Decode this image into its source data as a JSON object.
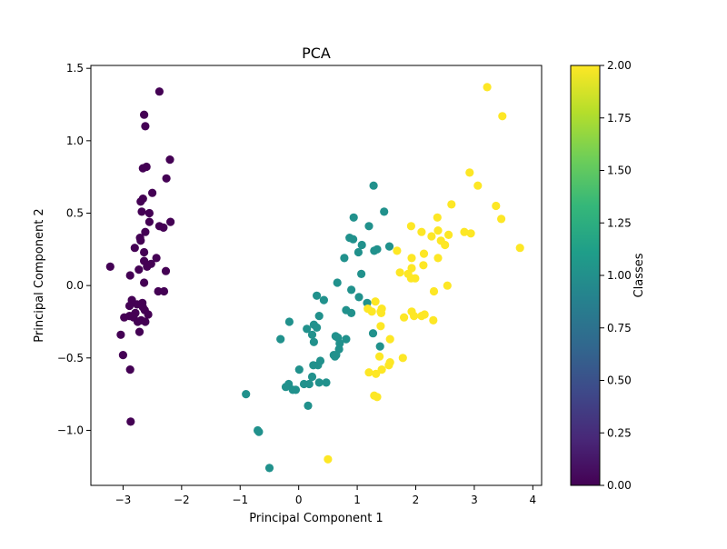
{
  "chart_data": {
    "type": "scatter",
    "title": "PCA",
    "xlabel": "Principal Component 1",
    "ylabel": "Principal Component 2",
    "xlim": [
      -3.55,
      4.15
    ],
    "ylim": [
      -1.38,
      1.52
    ],
    "xticks": [
      -3,
      -2,
      -1,
      0,
      1,
      2,
      3,
      4
    ],
    "xtick_labels": [
      "−3",
      "−2",
      "−1",
      "0",
      "1",
      "2",
      "3",
      "4"
    ],
    "yticks": [
      -1.0,
      -0.5,
      0.0,
      0.5,
      1.0,
      1.5
    ],
    "ytick_labels": [
      "−1.0",
      "−0.5",
      "0.0",
      "0.5",
      "1.0",
      "1.5"
    ],
    "grid": false,
    "legend": "none",
    "colorbar": {
      "label": "Classes",
      "min": 0.0,
      "max": 2.0,
      "ticks": [
        0.0,
        0.25,
        0.5,
        0.75,
        1.0,
        1.25,
        1.5,
        1.75,
        2.0
      ],
      "tick_labels": [
        "0.00",
        "0.25",
        "0.50",
        "0.75",
        "1.00",
        "1.25",
        "1.50",
        "1.75",
        "2.00"
      ],
      "colormap": [
        "#440154",
        "#482878",
        "#3e4989",
        "#31688e",
        "#26828e",
        "#1f9e89",
        "#35b779",
        "#6ece58",
        "#b5de2b",
        "#fde725"
      ]
    },
    "class_colors": [
      "#440154",
      "#21918c",
      "#fde725"
    ],
    "series": [
      {
        "class": 0,
        "x": [
          -2.38,
          -2.64,
          -2.62,
          -2.6,
          -2.66,
          -2.66,
          -2.26,
          -2.7,
          -2.2,
          -2.5,
          -2.68,
          -2.55,
          -2.38,
          -2.62,
          -2.31,
          -2.55,
          -2.43,
          -2.27,
          -2.64,
          -2.59,
          -2.7,
          -2.19,
          -2.64,
          -3.22,
          -2.88,
          -2.71,
          -2.4,
          -2.64,
          -2.52,
          -2.3,
          -2.85,
          -2.67,
          -2.76,
          -2.63,
          -2.79,
          -2.89,
          -2.82,
          -2.98,
          -2.62,
          -2.69,
          -2.57,
          -2.66,
          -2.72,
          -2.75,
          -2.8,
          -2.88,
          -3.0,
          -3.04,
          -2.87,
          -2.89,
          -2.84,
          -2.73
        ],
        "y": [
          1.34,
          1.18,
          1.1,
          0.82,
          0.81,
          0.6,
          0.74,
          0.58,
          0.87,
          0.64,
          0.51,
          0.5,
          0.41,
          0.37,
          0.4,
          0.44,
          0.19,
          0.1,
          0.17,
          0.13,
          0.31,
          0.44,
          0.23,
          0.13,
          0.07,
          0.33,
          -0.04,
          0.02,
          0.15,
          -0.04,
          -0.1,
          -0.12,
          -0.13,
          -0.17,
          -0.19,
          -0.14,
          -0.22,
          -0.22,
          -0.25,
          -0.24,
          -0.2,
          -0.15,
          -0.32,
          -0.25,
          0.26,
          -0.58,
          -0.48,
          -0.34,
          -0.94,
          -0.21,
          -0.21,
          0.11
        ]
      },
      {
        "class": 1,
        "x": [
          1.28,
          1.46,
          0.94,
          0.87,
          1.2,
          1.08,
          0.93,
          0.78,
          1.02,
          1.07,
          0.66,
          0.31,
          0.43,
          1.03,
          1.17,
          0.9,
          0.81,
          0.9,
          0.63,
          1.27,
          0.7,
          1.55,
          1.34,
          1.29,
          0.6,
          0.37,
          0.23,
          0.26,
          0.31,
          0.14,
          -0.16,
          0.35,
          0.26,
          0.33,
          0.67,
          0.69,
          0.81,
          0.62,
          0.35,
          0.09,
          -0.31,
          0.18,
          0.25,
          0.64,
          0.23,
          -0.17,
          0.01,
          -0.05,
          0.16,
          0.47,
          -0.22,
          -0.1,
          -0.9,
          -0.7,
          -0.68,
          -0.5,
          1.39
        ],
        "y": [
          0.69,
          0.51,
          0.47,
          0.33,
          0.41,
          0.28,
          0.32,
          0.19,
          0.23,
          0.08,
          0.02,
          -0.07,
          -0.1,
          -0.08,
          -0.12,
          -0.03,
          -0.17,
          -0.19,
          -0.35,
          -0.33,
          -0.4,
          0.27,
          0.25,
          0.24,
          -0.48,
          -0.52,
          -0.34,
          -0.27,
          -0.29,
          -0.3,
          -0.25,
          -0.21,
          -0.39,
          -0.55,
          -0.36,
          -0.44,
          -0.37,
          -0.49,
          -0.67,
          -0.68,
          -0.37,
          -0.68,
          -0.55,
          -0.48,
          -0.63,
          -0.68,
          -0.58,
          -0.72,
          -0.83,
          -0.67,
          -0.7,
          -0.72,
          -0.75,
          -1.0,
          -1.01,
          -1.26,
          -0.42
        ]
      },
      {
        "class": 2,
        "x": [
          3.22,
          3.48,
          2.92,
          3.06,
          2.61,
          3.37,
          3.46,
          3.78,
          2.83,
          2.94,
          2.37,
          2.1,
          1.92,
          2.38,
          2.27,
          2.5,
          2.56,
          2.43,
          1.68,
          1.93,
          2.14,
          2.38,
          2.13,
          1.93,
          1.87,
          1.99,
          1.73,
          1.92,
          2.54,
          2.31,
          1.42,
          1.31,
          1.41,
          1.18,
          1.25,
          1.4,
          1.93,
          1.97,
          2.15,
          2.1,
          1.8,
          1.56,
          1.42,
          1.54,
          1.2,
          1.38,
          1.56,
          1.29,
          1.34,
          1.32,
          1.78,
          1.4,
          0.5,
          2.3
        ],
        "y": [
          1.37,
          1.17,
          0.78,
          0.69,
          0.56,
          0.55,
          0.46,
          0.26,
          0.37,
          0.36,
          0.47,
          0.37,
          0.41,
          0.38,
          0.34,
          0.28,
          0.35,
          0.31,
          0.24,
          0.19,
          0.22,
          0.19,
          0.14,
          0.12,
          0.08,
          0.05,
          0.09,
          0.05,
          -0.0,
          -0.04,
          -0.16,
          -0.11,
          -0.19,
          -0.16,
          -0.18,
          -0.28,
          -0.18,
          -0.21,
          -0.2,
          -0.21,
          -0.22,
          -0.37,
          -0.58,
          -0.55,
          -0.6,
          -0.49,
          -0.53,
          -0.76,
          -0.77,
          -0.61,
          -0.5,
          -0.18,
          -1.2,
          -0.24
        ]
      }
    ]
  }
}
